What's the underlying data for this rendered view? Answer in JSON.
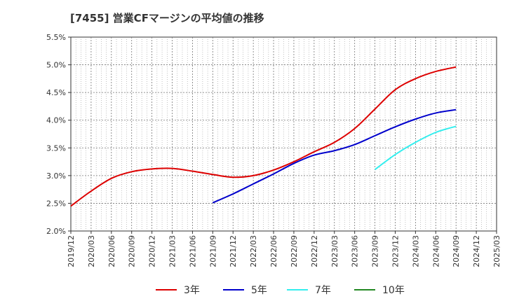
{
  "chart_data": {
    "type": "line",
    "title": "[7455]  営業CFマージンの平均値の推移",
    "xlabel": "",
    "ylabel": "",
    "ylim": [
      2.0,
      5.5
    ],
    "grid": true,
    "legend_position": "bottom",
    "yticks": [
      "2.0%",
      "2.5%",
      "3.0%",
      "3.5%",
      "4.0%",
      "4.5%",
      "5.0%",
      "5.5%"
    ],
    "xticks": [
      "2019/12",
      "2020/03",
      "2020/06",
      "2020/09",
      "2020/12",
      "2021/03",
      "2021/06",
      "2021/09",
      "2021/12",
      "2022/03",
      "2022/06",
      "2022/09",
      "2022/12",
      "2023/03",
      "2023/06",
      "2023/09",
      "2023/12",
      "2024/03",
      "2024/06",
      "2024/09",
      "2024/12",
      "2025/03"
    ],
    "series": [
      {
        "name": "3年",
        "color": "#dd0000",
        "points": [
          [
            "2019/12",
            2.45
          ],
          [
            "2020/03",
            2.72
          ],
          [
            "2020/06",
            2.95
          ],
          [
            "2020/09",
            3.07
          ],
          [
            "2020/12",
            3.12
          ],
          [
            "2021/03",
            3.13
          ],
          [
            "2021/06",
            3.08
          ],
          [
            "2021/09",
            3.02
          ],
          [
            "2021/12",
            2.97
          ],
          [
            "2022/03",
            3.0
          ],
          [
            "2022/06",
            3.1
          ],
          [
            "2022/09",
            3.25
          ],
          [
            "2022/12",
            3.43
          ],
          [
            "2023/03",
            3.6
          ],
          [
            "2023/06",
            3.85
          ],
          [
            "2023/09",
            4.2
          ],
          [
            "2023/12",
            4.55
          ],
          [
            "2024/03",
            4.75
          ],
          [
            "2024/06",
            4.88
          ],
          [
            "2024/09",
            4.96
          ]
        ]
      },
      {
        "name": "5年",
        "color": "#0000cc",
        "points": [
          [
            "2021/09",
            2.51
          ],
          [
            "2021/12",
            2.67
          ],
          [
            "2022/03",
            2.85
          ],
          [
            "2022/06",
            3.03
          ],
          [
            "2022/09",
            3.22
          ],
          [
            "2022/12",
            3.37
          ],
          [
            "2023/03",
            3.45
          ],
          [
            "2023/06",
            3.56
          ],
          [
            "2023/09",
            3.72
          ],
          [
            "2023/12",
            3.88
          ],
          [
            "2024/03",
            4.02
          ],
          [
            "2024/06",
            4.13
          ],
          [
            "2024/09",
            4.19
          ]
        ]
      },
      {
        "name": "7年",
        "color": "#33eeee",
        "points": [
          [
            "2023/09",
            3.11
          ],
          [
            "2023/12",
            3.38
          ],
          [
            "2024/03",
            3.6
          ],
          [
            "2024/06",
            3.78
          ],
          [
            "2024/09",
            3.89
          ]
        ]
      },
      {
        "name": "10年",
        "color": "#228822",
        "points": []
      }
    ]
  }
}
